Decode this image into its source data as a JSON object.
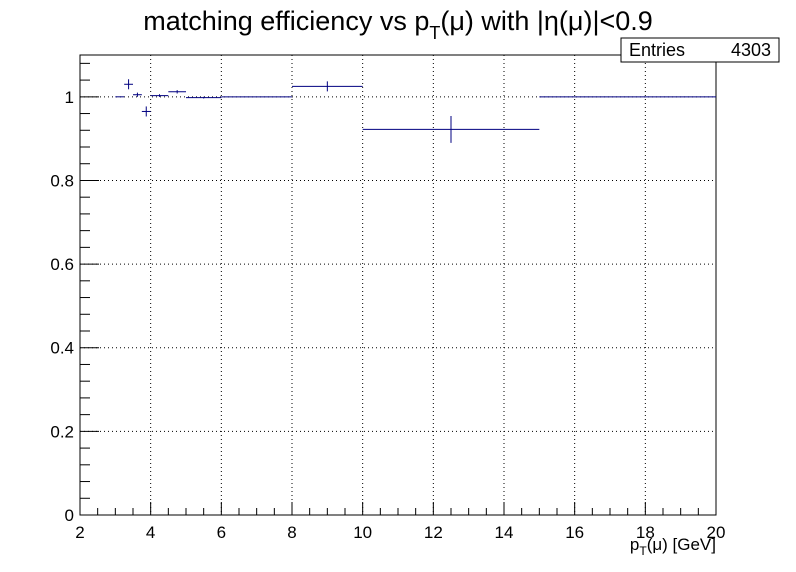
{
  "chart_data": {
    "type": "scatter",
    "title": {
      "pre": "matching efficiency vs p",
      "sub": "T",
      "post": "(μ) with |η(μ)|<0.9"
    },
    "xlabel": {
      "pre": "p",
      "sub": "T",
      "post": "(μ) [GeV]"
    },
    "ylabel": "",
    "xlim": [
      2,
      20
    ],
    "ylim": [
      0,
      1.1
    ],
    "grid": true,
    "x_ticks": [
      "2",
      "4",
      "6",
      "8",
      "10",
      "12",
      "14",
      "16",
      "18",
      "20"
    ],
    "y_ticks": [
      "0",
      "0.2",
      "0.4",
      "0.6",
      "0.8",
      "1"
    ],
    "stats_box": {
      "label": "Entries",
      "value": "4303"
    },
    "series": [
      {
        "color": "#000080",
        "points": [
          {
            "xlow": 3.0,
            "xhigh": 3.25,
            "y": 1.0,
            "yerr": 0.0
          },
          {
            "xlow": 3.25,
            "xhigh": 3.5,
            "y": 1.03,
            "yerr": 0.012
          },
          {
            "xlow": 3.5,
            "xhigh": 3.75,
            "y": 1.005,
            "yerr": 0.005
          },
          {
            "xlow": 3.75,
            "xhigh": 4.0,
            "y": 0.965,
            "yerr": 0.012
          },
          {
            "xlow": 4.0,
            "xhigh": 4.5,
            "y": 1.003,
            "yerr": 0.003
          },
          {
            "xlow": 4.5,
            "xhigh": 5.0,
            "y": 1.012,
            "yerr": 0.004
          },
          {
            "xlow": 5.0,
            "xhigh": 6.0,
            "y": 0.998,
            "yerr": 0.002
          },
          {
            "xlow": 6.0,
            "xhigh": 8.0,
            "y": 1.0,
            "yerr": 0.0
          },
          {
            "xlow": 8.0,
            "xhigh": 10.0,
            "y": 1.025,
            "yerr": 0.012
          },
          {
            "xlow": 10.0,
            "xhigh": 15.0,
            "y": 0.922,
            "yerr": 0.032
          },
          {
            "xlow": 15.0,
            "xhigh": 20.0,
            "y": 1.0,
            "yerr": 0.0
          }
        ]
      }
    ]
  }
}
